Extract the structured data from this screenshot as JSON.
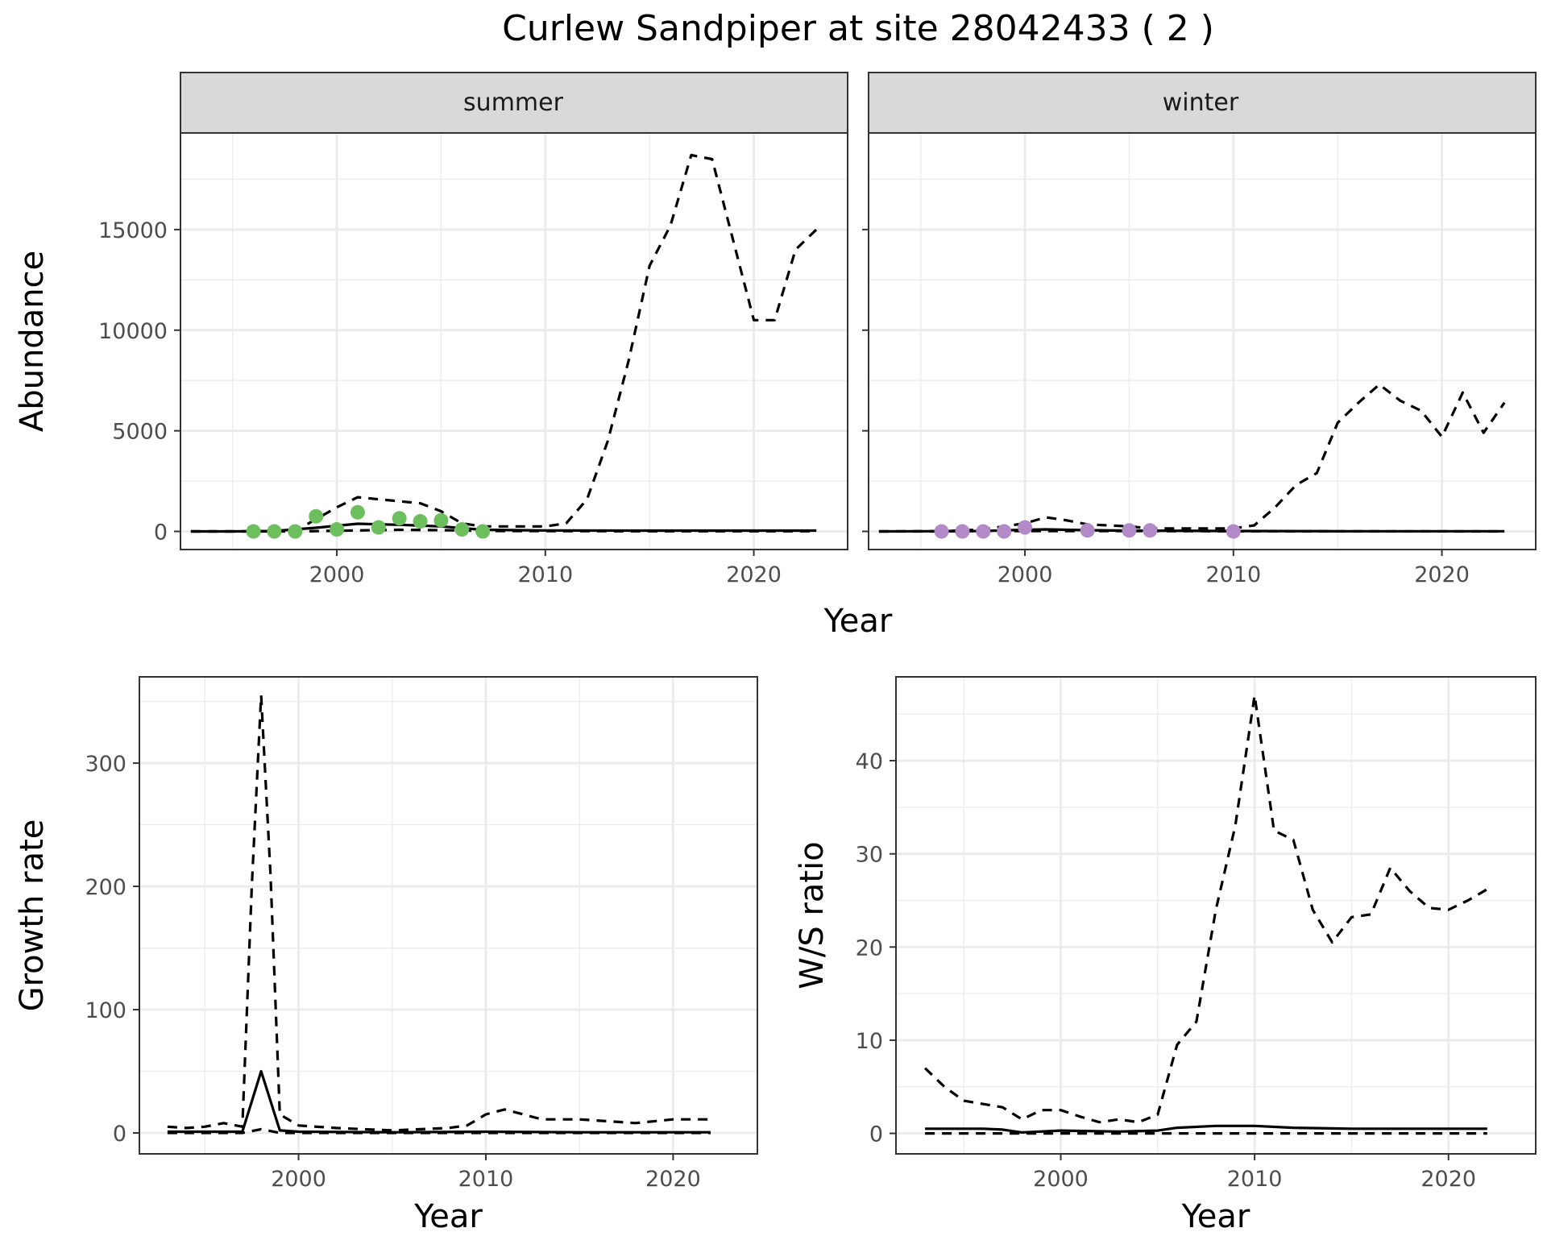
{
  "title": "Curlew Sandpiper at site 28042433 ( 2 )",
  "colors": {
    "summer_points": "#6dbf5e",
    "winter_points": "#b38ac8",
    "line": "#000000",
    "grid": "#ebebeb",
    "strip_fill": "#d9d9d9"
  },
  "chart_data": [
    {
      "type": "line",
      "facet": "summer",
      "xlabel": "Year",
      "ylabel": "Abundance",
      "xlim": [
        1992.5,
        2024.5
      ],
      "ylim": [
        -900,
        19800
      ],
      "x_ticks": [
        2000,
        2010,
        2020
      ],
      "y_ticks": [
        0,
        5000,
        10000,
        15000
      ],
      "grid": true,
      "series": [
        {
          "style": "solid",
          "x": [
            1993,
            1995,
            1997,
            1999,
            2001,
            2003,
            2005,
            2007,
            2010,
            2015,
            2020,
            2023
          ],
          "y": [
            0,
            0,
            20,
            180,
            380,
            330,
            250,
            80,
            50,
            40,
            40,
            40
          ]
        },
        {
          "style": "dashed",
          "x": [
            1993,
            1996,
            1998,
            2000,
            2001,
            2003,
            2004,
            2005,
            2006,
            2007,
            2008,
            2010,
            2011,
            2012,
            2013,
            2014,
            2015,
            2016,
            2017,
            2018,
            2019,
            2020,
            2021,
            2022,
            2023
          ],
          "y": [
            0,
            0,
            20,
            1200,
            1700,
            1500,
            1400,
            1000,
            400,
            250,
            250,
            250,
            400,
            1600,
            4500,
            8500,
            13200,
            15200,
            18700,
            18500,
            14500,
            10500,
            10500,
            14000,
            15000
          ]
        },
        {
          "style": "dashed",
          "x": [
            1993,
            1998,
            2001,
            2003,
            2005,
            2008,
            2015,
            2023
          ],
          "y": [
            0,
            0,
            50,
            80,
            60,
            20,
            10,
            10
          ]
        },
        {
          "style": "points",
          "x": [
            1996,
            1997,
            1998,
            1999,
            2000,
            2001,
            2002,
            2003,
            2004,
            2005,
            2006,
            2007
          ],
          "y": [
            0,
            0,
            0,
            750,
            100,
            950,
            200,
            650,
            500,
            550,
            100,
            0
          ]
        }
      ]
    },
    {
      "type": "line",
      "facet": "winter",
      "xlabel": "Year",
      "ylabel": "Abundance",
      "xlim": [
        1992.5,
        2024.5
      ],
      "ylim": [
        -900,
        19800
      ],
      "x_ticks": [
        2000,
        2010,
        2020
      ],
      "y_ticks": [
        0,
        5000,
        10000,
        15000
      ],
      "grid": true,
      "series": [
        {
          "style": "solid",
          "x": [
            1993,
            1998,
            2000,
            2001,
            2003,
            2005,
            2010,
            2015,
            2023
          ],
          "y": [
            0,
            20,
            80,
            100,
            60,
            40,
            20,
            10,
            10
          ]
        },
        {
          "style": "dashed",
          "x": [
            1993,
            1996,
            1998,
            2000,
            2001,
            2002,
            2003,
            2005,
            2006,
            2010,
            2011,
            2012,
            2013,
            2014,
            2015,
            2016,
            2017,
            2018,
            2019,
            2020,
            2021,
            2022,
            2023
          ],
          "y": [
            0,
            0,
            100,
            400,
            700,
            550,
            350,
            250,
            150,
            150,
            300,
            1200,
            2300,
            2900,
            5400,
            6400,
            7300,
            6500,
            6000,
            4700,
            6900,
            4900,
            6400
          ]
        },
        {
          "style": "dashed",
          "x": [
            1993,
            2000,
            2005,
            2010,
            2023
          ],
          "y": [
            0,
            20,
            20,
            10,
            0
          ]
        },
        {
          "style": "points",
          "x": [
            1996,
            1997,
            1998,
            1999,
            2000,
            2003,
            2005,
            2006,
            2010
          ],
          "y": [
            0,
            0,
            0,
            0,
            200,
            50,
            50,
            50,
            0
          ]
        }
      ]
    },
    {
      "type": "line",
      "xlabel": "Year",
      "ylabel": "Growth rate",
      "xlim": [
        1991.5,
        2024.5
      ],
      "ylim": [
        -17,
        370
      ],
      "x_ticks": [
        2000,
        2010,
        2020
      ],
      "y_ticks": [
        0,
        100,
        200,
        300
      ],
      "grid": true,
      "series": [
        {
          "style": "solid",
          "x": [
            1993,
            1995,
            1997,
            1998,
            1999,
            2000,
            2005,
            2010,
            2015,
            2020,
            2022
          ],
          "y": [
            1,
            1,
            1,
            50,
            2,
            1,
            0.5,
            1,
            0.5,
            0.5,
            0.5
          ]
        },
        {
          "style": "dashed",
          "x": [
            1993,
            1994,
            1995,
            1996,
            1997,
            1997.5,
            1998,
            1998.5,
            1999,
            2000,
            2002,
            2005,
            2008,
            2009,
            2010,
            2011,
            2012,
            2013,
            2015,
            2018,
            2020,
            2022
          ],
          "y": [
            5,
            4,
            5,
            8,
            5,
            200,
            355,
            210,
            15,
            6,
            4,
            2,
            4,
            6,
            15,
            19,
            15,
            11,
            11,
            8,
            11,
            11
          ]
        },
        {
          "style": "dashed",
          "x": [
            1993,
            1997,
            1998,
            1999,
            2005,
            2010,
            2022
          ],
          "y": [
            0,
            0,
            3,
            0,
            0,
            0,
            0
          ]
        }
      ]
    },
    {
      "type": "line",
      "xlabel": "Year",
      "ylabel": "W/S ratio",
      "xlim": [
        1991.5,
        2024.5
      ],
      "ylim": [
        -2.2,
        49
      ],
      "x_ticks": [
        2000,
        2010,
        2020
      ],
      "y_ticks": [
        0,
        10,
        20,
        30,
        40
      ],
      "grid": true,
      "series": [
        {
          "style": "solid",
          "x": [
            1993,
            1996,
            1997,
            1998,
            2000,
            2003,
            2005,
            2006,
            2008,
            2010,
            2012,
            2015,
            2020,
            2022
          ],
          "y": [
            0.5,
            0.5,
            0.4,
            0.1,
            0.3,
            0.2,
            0.3,
            0.6,
            0.8,
            0.8,
            0.6,
            0.5,
            0.5,
            0.5
          ]
        },
        {
          "style": "dashed",
          "x": [
            1993,
            1994,
            1995,
            1997,
            1998,
            1999,
            2000,
            2001,
            2002,
            2003,
            2004,
            2005,
            2006,
            2007,
            2008,
            2009,
            2010,
            2011,
            2012,
            2013,
            2014,
            2015,
            2016,
            2017,
            2018,
            2019,
            2020,
            2021,
            2022
          ],
          "y": [
            7,
            5,
            3.5,
            2.8,
            1.5,
            2.5,
            2.5,
            1.8,
            1.2,
            1.5,
            1.2,
            2,
            9.5,
            12,
            24,
            33,
            47,
            32.5,
            31.5,
            24,
            20.5,
            23.2,
            23.5,
            28.5,
            26,
            24.2,
            24,
            25,
            26.2
          ]
        },
        {
          "style": "dashed",
          "x": [
            1993,
            2000,
            2005,
            2010,
            2022
          ],
          "y": [
            0,
            0,
            0,
            0,
            0
          ]
        }
      ]
    }
  ]
}
